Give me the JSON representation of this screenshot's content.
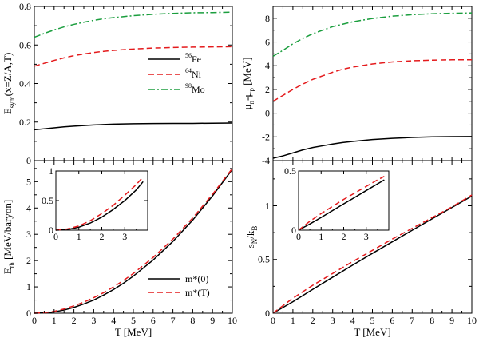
{
  "colors": {
    "black": "#000000",
    "red": "#e41a1c",
    "green": "#1b9e3e"
  },
  "chart_data": [
    {
      "id": "esym",
      "type": "line",
      "ylabel_main": "E",
      "ylabel_sub": "sym",
      "ylabel_rest": "(x=Z/A,T)",
      "xlim": [
        0,
        10
      ],
      "ylim": [
        0,
        0.8
      ],
      "yticks": [
        "0",
        "0.2",
        "0.4",
        "0.6",
        "0.8"
      ],
      "legend": [
        {
          "sup": "56",
          "label": "Fe"
        },
        {
          "sup": "64",
          "label": "Ni"
        },
        {
          "sup": "98",
          "label": "Mo"
        }
      ],
      "series": [
        {
          "name": "56Fe",
          "style": "solid",
          "color": "#000000",
          "x": [
            0,
            0.5,
            1,
            1.5,
            2,
            2.5,
            3,
            3.5,
            4,
            5,
            6,
            7,
            8,
            9,
            10
          ],
          "y": [
            0.16,
            0.165,
            0.17,
            0.175,
            0.179,
            0.182,
            0.185,
            0.187,
            0.189,
            0.191,
            0.192,
            0.193,
            0.193,
            0.194,
            0.195
          ]
        },
        {
          "name": "64Ni",
          "style": "dashed",
          "color": "#e41a1c",
          "x": [
            0,
            0.5,
            1,
            1.5,
            2,
            2.5,
            3,
            3.5,
            4,
            5,
            6,
            7,
            8,
            9,
            10
          ],
          "y": [
            0.49,
            0.505,
            0.52,
            0.533,
            0.545,
            0.553,
            0.561,
            0.567,
            0.572,
            0.579,
            0.584,
            0.587,
            0.589,
            0.59,
            0.591
          ]
        },
        {
          "name": "98Mo",
          "style": "dashdot",
          "color": "#1b9e3e",
          "x": [
            0,
            0.5,
            1,
            1.5,
            2,
            2.5,
            3,
            3.5,
            4,
            5,
            6,
            7,
            8,
            9,
            10
          ],
          "y": [
            0.64,
            0.66,
            0.678,
            0.694,
            0.707,
            0.718,
            0.728,
            0.736,
            0.742,
            0.752,
            0.759,
            0.764,
            0.767,
            0.768,
            0.77
          ]
        }
      ]
    },
    {
      "id": "mu",
      "type": "line",
      "ylabel_main": "μ",
      "ylabel_sub1": "n",
      "ylabel_mid": "-μ",
      "ylabel_sub2": "p",
      "ylabel_rest": " [MeV]",
      "xlim": [
        0,
        10
      ],
      "ylim": [
        -4,
        9
      ],
      "yticks": [
        "-4",
        "-2",
        "0",
        "2",
        "4",
        "6",
        "8"
      ],
      "series": [
        {
          "name": "56Fe",
          "style": "solid",
          "color": "#000000",
          "x": [
            0,
            0.5,
            1,
            1.5,
            2,
            2.5,
            3,
            3.5,
            4,
            5,
            6,
            7,
            8,
            9,
            10
          ],
          "y": [
            -3.8,
            -3.6,
            -3.35,
            -3.1,
            -2.9,
            -2.75,
            -2.6,
            -2.48,
            -2.38,
            -2.22,
            -2.12,
            -2.05,
            -2.0,
            -1.98,
            -1.97
          ]
        },
        {
          "name": "64Ni",
          "style": "dashed",
          "color": "#e41a1c",
          "x": [
            0,
            0.5,
            1,
            1.5,
            2,
            2.5,
            3,
            3.5,
            4,
            5,
            6,
            7,
            8,
            9,
            10
          ],
          "y": [
            1.0,
            1.5,
            2.0,
            2.45,
            2.85,
            3.15,
            3.45,
            3.7,
            3.88,
            4.15,
            4.32,
            4.42,
            4.47,
            4.5,
            4.5
          ]
        },
        {
          "name": "98Mo",
          "style": "dashdot",
          "color": "#1b9e3e",
          "x": [
            0,
            0.5,
            1,
            1.5,
            2,
            2.5,
            3,
            3.5,
            4,
            5,
            6,
            7,
            8,
            9,
            10
          ],
          "y": [
            4.8,
            5.3,
            5.85,
            6.3,
            6.7,
            7.0,
            7.3,
            7.5,
            7.7,
            7.98,
            8.18,
            8.3,
            8.38,
            8.42,
            8.45
          ]
        }
      ]
    },
    {
      "id": "eth",
      "type": "line",
      "ylabel_main": "E",
      "ylabel_sub": "th",
      "ylabel_rest": " [MeV/baryon]",
      "xlabel": "T [MeV]",
      "xlim": [
        0,
        10
      ],
      "ylim": [
        0,
        5.8
      ],
      "xticks": [
        "0",
        "1",
        "2",
        "3",
        "4",
        "5",
        "6",
        "7",
        "8",
        "9",
        "10"
      ],
      "yticks": [
        "0",
        "1",
        "2",
        "3",
        "4",
        "5"
      ],
      "legend": [
        {
          "label": "m*(0)"
        },
        {
          "label": "m*(T)"
        }
      ],
      "series": [
        {
          "name": "m*(0)",
          "style": "solid",
          "color": "#000000",
          "x": [
            0,
            0.5,
            1,
            1.5,
            2,
            2.5,
            3,
            3.5,
            4,
            4.5,
            5,
            6,
            7,
            8,
            9,
            10
          ],
          "y": [
            0,
            0.01,
            0.05,
            0.12,
            0.22,
            0.35,
            0.5,
            0.69,
            0.9,
            1.14,
            1.41,
            2.02,
            2.73,
            3.54,
            4.46,
            5.47
          ]
        },
        {
          "name": "m*(T)",
          "style": "dashed",
          "color": "#e41a1c",
          "x": [
            0,
            0.5,
            1,
            1.5,
            2,
            2.5,
            3,
            3.5,
            4,
            4.5,
            5,
            6,
            7,
            8,
            9,
            10
          ],
          "y": [
            0,
            0.02,
            0.07,
            0.16,
            0.28,
            0.42,
            0.59,
            0.78,
            1.0,
            1.24,
            1.51,
            2.12,
            2.82,
            3.62,
            4.52,
            5.5
          ]
        }
      ],
      "inset": {
        "xlim": [
          0,
          4
        ],
        "ylim": [
          0,
          1
        ],
        "xticks": [
          "0",
          "1",
          "2",
          "3"
        ],
        "yticks": [
          "0",
          "0.5",
          "1"
        ],
        "series": [
          {
            "name": "m*(0)",
            "style": "solid",
            "color": "#000000",
            "x": [
              0,
              0.5,
              1,
              1.5,
              2,
              2.5,
              3,
              3.5,
              3.8
            ],
            "y": [
              0,
              0.01,
              0.05,
              0.12,
              0.22,
              0.35,
              0.5,
              0.68,
              0.82
            ]
          },
          {
            "name": "m*(T)",
            "style": "dashed",
            "color": "#e41a1c",
            "x": [
              0,
              0.5,
              1,
              1.5,
              2,
              2.5,
              3,
              3.5,
              3.8
            ],
            "y": [
              0,
              0.02,
              0.07,
              0.16,
              0.28,
              0.42,
              0.59,
              0.77,
              0.9
            ]
          }
        ]
      }
    },
    {
      "id": "sn",
      "type": "line",
      "ylabel_main": "s",
      "ylabel_sub": "N",
      "ylabel_rest": "/k",
      "ylabel_sub2": "B",
      "xlabel": "T [MeV]",
      "xlim": [
        0,
        10
      ],
      "ylim": [
        0,
        1.42
      ],
      "xticks": [
        "0",
        "1",
        "2",
        "3",
        "4",
        "5",
        "6",
        "7",
        "8",
        "9",
        "10"
      ],
      "yticks": [
        "0",
        "0.5",
        "1"
      ],
      "series": [
        {
          "name": "m*(0)",
          "style": "solid",
          "color": "#000000",
          "x": [
            0,
            1,
            2,
            3,
            4,
            5,
            6,
            7,
            8,
            9,
            10
          ],
          "y": [
            0,
            0.107,
            0.222,
            0.335,
            0.447,
            0.557,
            0.665,
            0.772,
            0.878,
            0.984,
            1.09
          ]
        },
        {
          "name": "m*(T)",
          "style": "dashed",
          "color": "#e41a1c",
          "x": [
            0,
            1,
            2,
            3,
            4,
            5,
            6,
            7,
            8,
            9,
            10
          ],
          "y": [
            0,
            0.14,
            0.26,
            0.37,
            0.48,
            0.585,
            0.69,
            0.79,
            0.89,
            0.99,
            1.1
          ]
        }
      ],
      "inset": {
        "xlim": [
          0,
          4
        ],
        "ylim": [
          0,
          0.5
        ],
        "xticks": [
          "0",
          "1",
          "2",
          "3"
        ],
        "yticks": [
          "0",
          "0.5"
        ],
        "series": [
          {
            "name": "m*(0)",
            "style": "solid",
            "color": "#000000",
            "x": [
              0,
              0.5,
              1,
              1.5,
              2,
              2.5,
              3,
              3.5,
              3.8
            ],
            "y": [
              0,
              0.052,
              0.107,
              0.165,
              0.222,
              0.278,
              0.335,
              0.391,
              0.425
            ]
          },
          {
            "name": "m*(T)",
            "style": "dashed",
            "color": "#e41a1c",
            "x": [
              0,
              0.5,
              1,
              1.5,
              2,
              2.5,
              3,
              3.5,
              3.8
            ],
            "y": [
              0,
              0.075,
              0.14,
              0.2,
              0.26,
              0.315,
              0.37,
              0.425,
              0.455
            ]
          }
        ]
      }
    }
  ]
}
